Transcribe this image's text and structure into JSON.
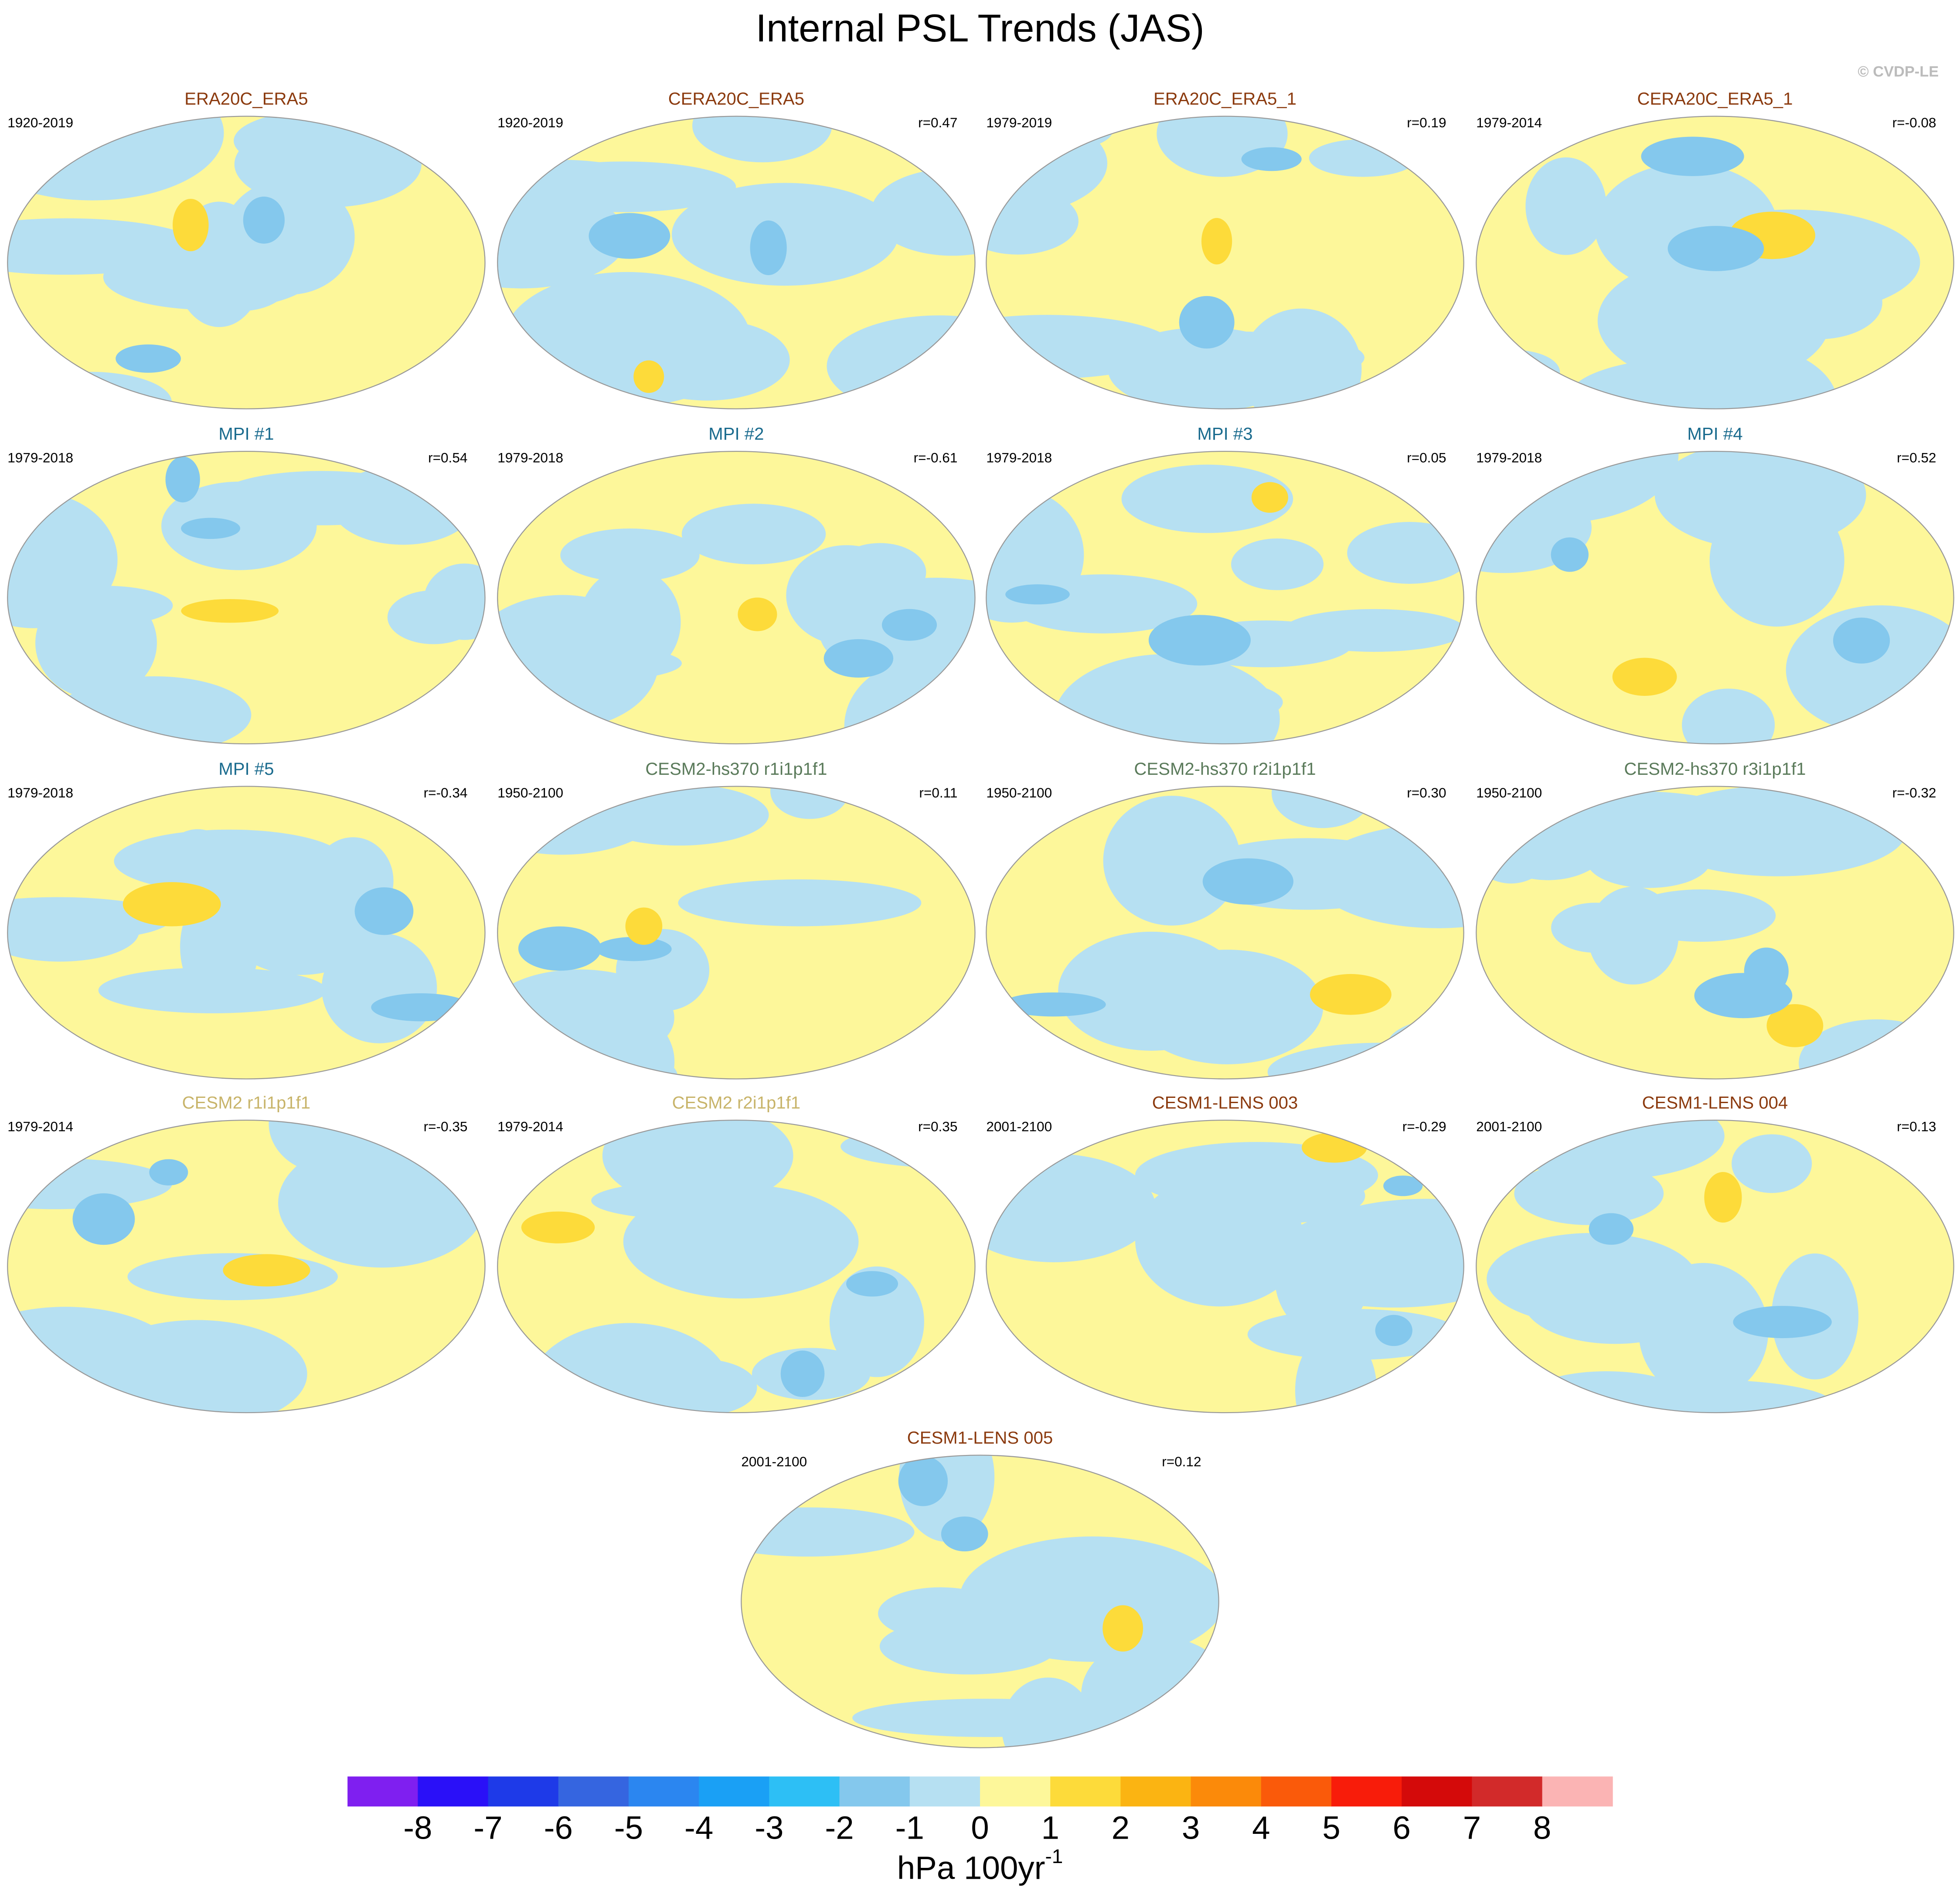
{
  "title": "Internal PSL Trends (JAS)",
  "credit": "© CVDP-LE",
  "panels": [
    {
      "title": "ERA20C_ERA5",
      "color": "#8b3a0e",
      "period": "1920-2019"
    },
    {
      "title": "CERA20C_ERA5",
      "color": "#8b3a0e",
      "period": "1920-2019",
      "r": "r=0.47"
    },
    {
      "title": "ERA20C_ERA5_1",
      "color": "#8b3a0e",
      "period": "1979-2019",
      "r": "r=0.19"
    },
    {
      "title": "CERA20C_ERA5_1",
      "color": "#8b3a0e",
      "period": "1979-2014",
      "r": "r=-0.08"
    },
    {
      "title": "MPI #1",
      "color": "#1a6b8e",
      "period": "1979-2018",
      "r": "r=0.54"
    },
    {
      "title": "MPI #2",
      "color": "#1a6b8e",
      "period": "1979-2018",
      "r": "r=-0.61"
    },
    {
      "title": "MPI #3",
      "color": "#1a6b8e",
      "period": "1979-2018",
      "r": "r=0.05"
    },
    {
      "title": "MPI #4",
      "color": "#1a6b8e",
      "period": "1979-2018",
      "r": "r=0.52"
    },
    {
      "title": "MPI #5",
      "color": "#1a6b8e",
      "period": "1979-2018",
      "r": "r=-0.34"
    },
    {
      "title": "CESM2-hs370 r1i1p1f1",
      "color": "#5a7a5a",
      "period": "1950-2100",
      "r": "r=0.11"
    },
    {
      "title": "CESM2-hs370 r2i1p1f1",
      "color": "#5a7a5a",
      "period": "1950-2100",
      "r": "r=0.30"
    },
    {
      "title": "CESM2-hs370 r3i1p1f1",
      "color": "#5a7a5a",
      "period": "1950-2100",
      "r": "r=-0.32"
    },
    {
      "title": "CESM2 r1i1p1f1",
      "color": "#c8b46a",
      "period": "1979-2014",
      "r": "r=-0.35"
    },
    {
      "title": "CESM2 r2i1p1f1",
      "color": "#c8b46a",
      "period": "1979-2014",
      "r": "r=0.35"
    },
    {
      "title": "CESM1-LENS 003",
      "color": "#8b3a0e",
      "period": "2001-2100",
      "r": "r=-0.29"
    },
    {
      "title": "CESM1-LENS 004",
      "color": "#8b3a0e",
      "period": "2001-2100",
      "r": "r=0.13"
    },
    {
      "title": "CESM1-LENS 005",
      "color": "#8b3a0e",
      "period": "2001-2100",
      "r": "r=0.12"
    }
  ],
  "colorbar": {
    "colors": [
      "#7f1ff0",
      "#2a10f8",
      "#1e3ae8",
      "#3565e0",
      "#2b86f0",
      "#1aa0f5",
      "#2dbff5",
      "#84c8ed",
      "#b6e0f2",
      "#fdf79a",
      "#fddb3a",
      "#fbb412",
      "#fb8a0a",
      "#fa5a0a",
      "#f81c0a",
      "#d40a0a",
      "#d22a2a",
      "#fbb4b4"
    ],
    "ticks": [
      -8,
      -7,
      -6,
      -5,
      -4,
      -3,
      -2,
      -1,
      0,
      1,
      2,
      3,
      4,
      5,
      6,
      7,
      8
    ],
    "unit": "hPa 100yr",
    "unit_exponent": "-1"
  }
}
